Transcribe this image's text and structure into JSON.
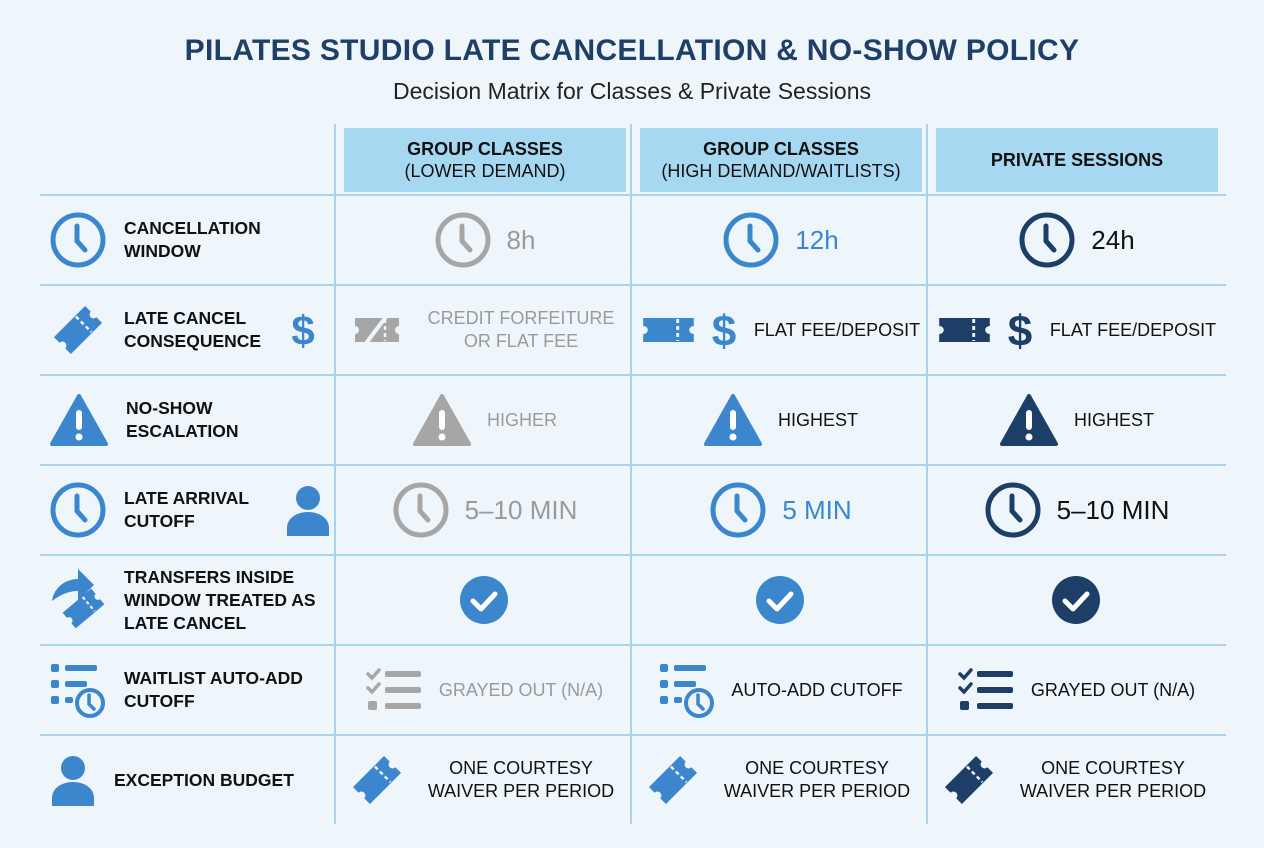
{
  "title": "PILATES STUDIO LATE CANCELLATION & NO-SHOW POLICY",
  "subtitle": "Decision Matrix for Classes & Private Sessions",
  "colors": {
    "gray": "#a6a6a6",
    "blue": "#3b86cc",
    "navy": "#1d3e66",
    "header_bg": "#a7d8f2",
    "grid": "#a9d2ec"
  },
  "columns": [
    {
      "line1": "GROUP CLASSES",
      "line2": "(LOWER DEMAND)"
    },
    {
      "line1": "GROUP CLASSES",
      "line2": "(HIGH DEMAND/WAITLISTS)"
    },
    {
      "line1": "PRIVATE SESSIONS",
      "line2": ""
    }
  ],
  "rows": [
    {
      "label": "Cancellation Window",
      "label_icons": [
        "clock-icon"
      ],
      "cells": [
        {
          "icon": "clock-icon",
          "text": "8h",
          "tone": "gray",
          "big": true
        },
        {
          "icon": "clock-icon",
          "text": "12h",
          "tone": "blue",
          "big": true
        },
        {
          "icon": "clock-icon",
          "text": "24h",
          "tone": "navy",
          "big": true
        }
      ]
    },
    {
      "label": "Late Cancel Consequence",
      "label_icons": [
        "ticket-icon",
        "dollar-icon"
      ],
      "cells": [
        {
          "icon": "crossed-ticket-icon",
          "text": "CREDIT FORFEITURE OR FLAT FEE",
          "tone": "gray"
        },
        {
          "icon": "ticket-dollar-icon",
          "text": "FLAT FEE/DEPOSIT",
          "tone": "blue"
        },
        {
          "icon": "ticket-dollar-icon",
          "text": "FLAT FEE/DEPOSIT",
          "tone": "navy"
        }
      ]
    },
    {
      "label": "No-Show Escalation",
      "label_icons": [
        "warning-icon"
      ],
      "cells": [
        {
          "icon": "warning-icon",
          "text": "HIGHER",
          "tone": "gray"
        },
        {
          "icon": "warning-icon",
          "text": "HIGHEST",
          "tone": "blue"
        },
        {
          "icon": "warning-icon",
          "text": "HIGHEST",
          "tone": "navy"
        }
      ]
    },
    {
      "label": "Late Arrival Cutoff",
      "label_icons": [
        "clock-icon",
        "person-icon"
      ],
      "cells": [
        {
          "icon": "clock-icon",
          "text": "5–10 MIN",
          "tone": "gray",
          "big": true
        },
        {
          "icon": "clock-icon",
          "text": "5 MIN",
          "tone": "blue",
          "big": true
        },
        {
          "icon": "clock-icon",
          "text": "5–10 MIN",
          "tone": "navy",
          "big": true
        }
      ]
    },
    {
      "label": "Transfers Inside Window Treated As Late Cancel",
      "label_icons": [
        "transfer-ticket-icon"
      ],
      "cells": [
        {
          "icon": "check-circle-icon",
          "text": "",
          "tone": "blue"
        },
        {
          "icon": "check-circle-icon",
          "text": "",
          "tone": "blue"
        },
        {
          "icon": "check-circle-icon",
          "text": "",
          "tone": "navy"
        }
      ]
    },
    {
      "label": "Waitlist Auto-Add Cutoff",
      "label_icons": [
        "list-clock-icon"
      ],
      "cells": [
        {
          "icon": "checklist-icon",
          "text": "GRAYED OUT (N/A)",
          "tone": "gray"
        },
        {
          "icon": "list-clock-icon",
          "text": "AUTO-ADD CUTOFF",
          "tone": "blue"
        },
        {
          "icon": "checklist-icon",
          "text": "GRAYED OUT (N/A)",
          "tone": "navy"
        }
      ]
    },
    {
      "label": "Exception Budget",
      "label_icons": [
        "person-icon"
      ],
      "cells": [
        {
          "icon": "ticket-icon",
          "text": "ONE COURTESY WAIVER PER PERIOD",
          "tone": "blue"
        },
        {
          "icon": "ticket-icon",
          "text": "ONE COURTESY WAIVER PER PERIOD",
          "tone": "blue"
        },
        {
          "icon": "ticket-icon",
          "text": "ONE COURTESY WAIVER PER PERIOD",
          "tone": "navy"
        }
      ]
    }
  ]
}
